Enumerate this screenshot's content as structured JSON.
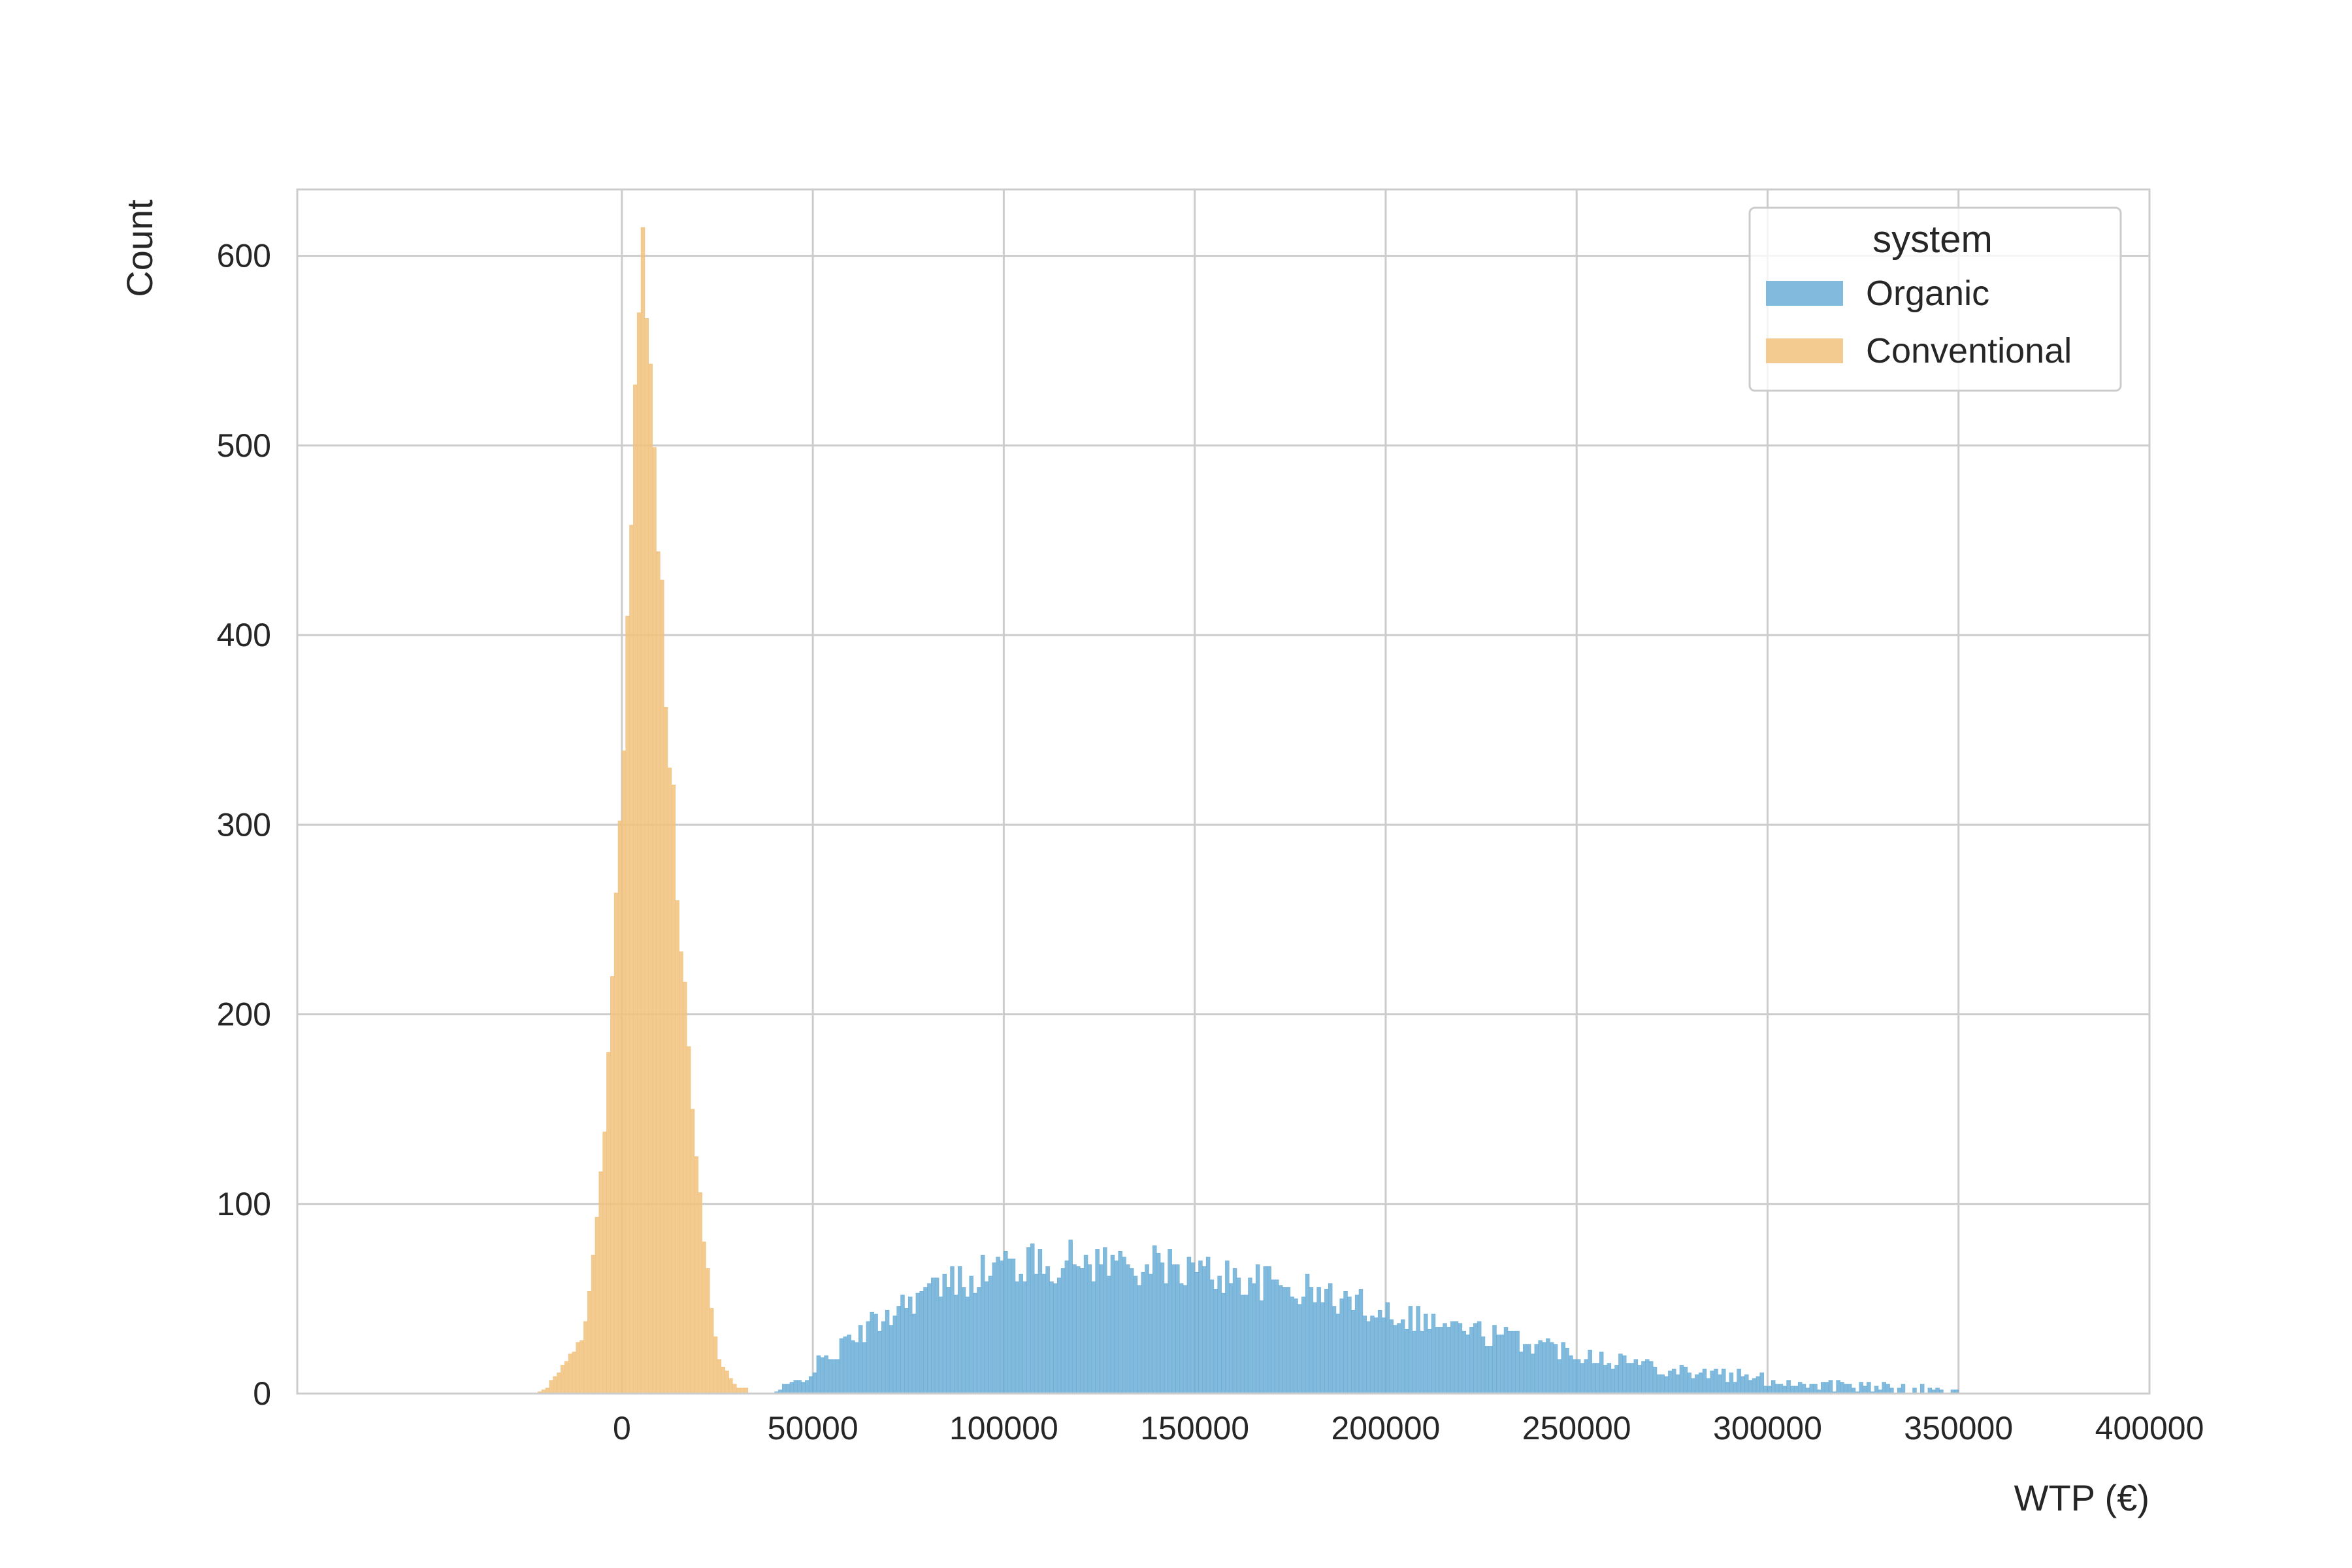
{
  "chart_data": {
    "type": "histogram",
    "title": "",
    "xlabel": "WTP (€)",
    "ylabel": "Count",
    "xlim": [
      -85000,
      400000
    ],
    "ylim": [
      0,
      635
    ],
    "xticks": [
      0,
      50000,
      100000,
      150000,
      200000,
      250000,
      300000,
      350000,
      400000
    ],
    "xtick_labels": [
      "0",
      "50000",
      "100000",
      "150000",
      "200000",
      "250000",
      "300000",
      "350000",
      "400000"
    ],
    "yticks": [
      0,
      100,
      200,
      300,
      400,
      500,
      600
    ],
    "ytick_labels": [
      "0",
      "100",
      "200",
      "300",
      "400",
      "500",
      "600"
    ],
    "grid": true,
    "bin_width": 1000,
    "legend": {
      "title": "system",
      "position": "top-right"
    },
    "series": [
      {
        "name": "Organic",
        "color": "#6baed6",
        "shape": "skewed-normal",
        "x_range": [
          40000,
          350000
        ],
        "peak_x": 125000,
        "peak_count": 70,
        "max_bar": 81,
        "sample_counts": [
          [
            45000,
            5
          ],
          [
            60000,
            28
          ],
          [
            75000,
            50
          ],
          [
            100000,
            68
          ],
          [
            125000,
            70
          ],
          [
            150000,
            65
          ],
          [
            175000,
            56
          ],
          [
            200000,
            44
          ],
          [
            225000,
            32
          ],
          [
            250000,
            22
          ],
          [
            275000,
            13
          ],
          [
            300000,
            7
          ],
          [
            325000,
            3
          ],
          [
            350000,
            1
          ]
        ]
      },
      {
        "name": "Conventional",
        "color": "#f1c27d",
        "shape": "normal",
        "x_range": [
          -22000,
          33000
        ],
        "peak_x": 6000,
        "peak_count": 604,
        "sample_counts": [
          [
            -20000,
            2
          ],
          [
            -10000,
            30
          ],
          [
            -5000,
            120
          ],
          [
            0,
            330
          ],
          [
            3000,
            500
          ],
          [
            6000,
            604
          ],
          [
            8000,
            540
          ],
          [
            10000,
            430
          ],
          [
            15000,
            250
          ],
          [
            20000,
            110
          ],
          [
            25000,
            20
          ],
          [
            30000,
            3
          ]
        ]
      }
    ]
  }
}
